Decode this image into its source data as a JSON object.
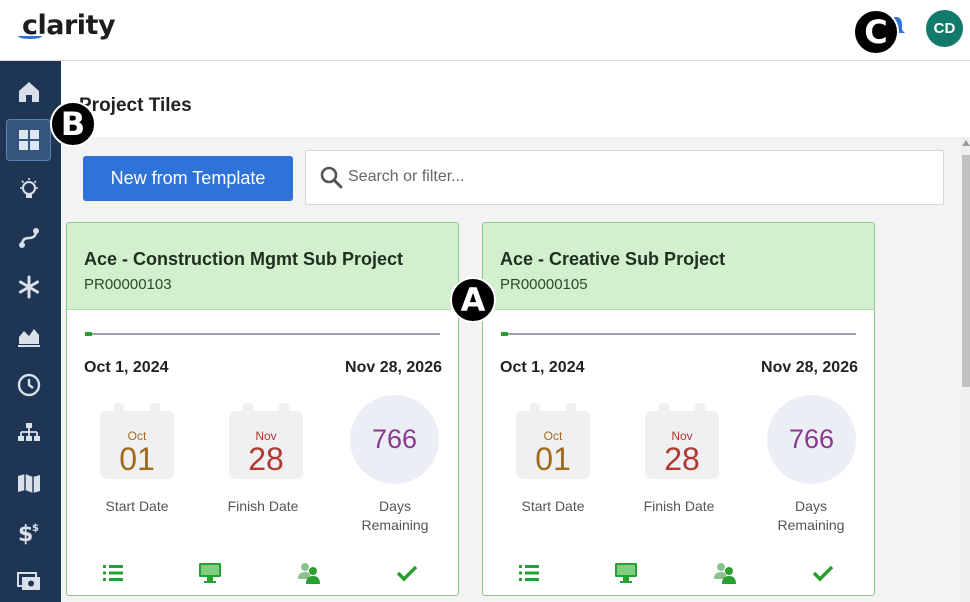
{
  "app": {
    "logo": "clarity",
    "user_initials": "CD"
  },
  "page": {
    "title": "Project Tiles"
  },
  "toolbar": {
    "new_template_label": "New from Template",
    "search_placeholder": "Search or filter..."
  },
  "sidebar": {
    "items": [
      {
        "name": "home",
        "icon": "home-icon"
      },
      {
        "name": "tiles",
        "icon": "grid-icon",
        "active": true
      },
      {
        "name": "ideas",
        "icon": "lightbulb-icon"
      },
      {
        "name": "roadmap",
        "icon": "roadmap-icon"
      },
      {
        "name": "hub",
        "icon": "asterisk-icon"
      },
      {
        "name": "analytics",
        "icon": "area-chart-icon"
      },
      {
        "name": "timesheets",
        "icon": "clock-icon"
      },
      {
        "name": "org",
        "icon": "org-chart-icon"
      },
      {
        "name": "map",
        "icon": "map-icon"
      },
      {
        "name": "financials",
        "icon": "dollar-icon"
      },
      {
        "name": "billing",
        "icon": "money-card-icon"
      }
    ]
  },
  "tiles": [
    {
      "title": "Ace - Construction Mgmt Sub Project",
      "code": "PR00000103",
      "progress_fraction": 0.02,
      "start_date": "Oct 1, 2024",
      "end_date": "Nov 28, 2026",
      "start_month": "Oct",
      "start_day": "01",
      "start_label": "Start Date",
      "finish_month": "Nov",
      "finish_day": "28",
      "finish_label": "Finish Date",
      "days_remaining": "766",
      "days_label_1": "Days",
      "days_label_2": "Remaining"
    },
    {
      "title": "Ace - Creative Sub Project",
      "code": "PR00000105",
      "progress_fraction": 0.02,
      "start_date": "Oct 1, 2024",
      "end_date": "Nov 28, 2026",
      "start_month": "Oct",
      "start_day": "01",
      "start_label": "Start Date",
      "finish_month": "Nov",
      "finish_day": "28",
      "finish_label": "Finish Date",
      "days_remaining": "766",
      "days_label_1": "Days",
      "days_label_2": "Remaining"
    }
  ],
  "tile_actions": [
    "list-icon",
    "monitor-icon",
    "team-icon",
    "checkmark-icon"
  ],
  "markers": {
    "a": "A",
    "b": "B",
    "c": "C"
  },
  "colors": {
    "sidebar": "#1e3554",
    "accent": "#2f73d9",
    "tile_header": "#d2f0cd",
    "avatar": "#127a6a",
    "progress": "#2aa033"
  }
}
